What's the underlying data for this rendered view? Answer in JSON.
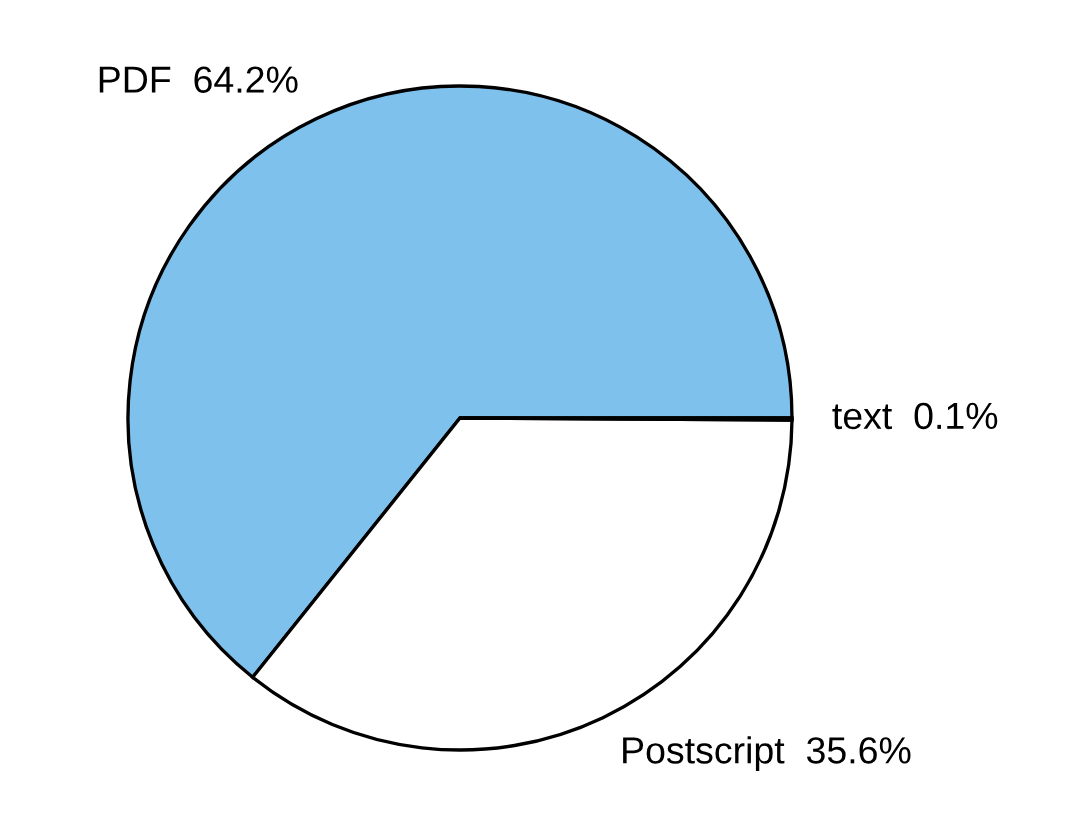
{
  "chart_data": {
    "type": "pie",
    "categories": [
      "PDF",
      "Postscript",
      "text"
    ],
    "values": [
      64.2,
      35.6,
      0.1
    ],
    "value_labels": [
      "64.2%",
      "35.6%",
      "0.1%"
    ],
    "colors": [
      "#7fc1ed",
      "#ffffff",
      "#ffffff"
    ]
  }
}
